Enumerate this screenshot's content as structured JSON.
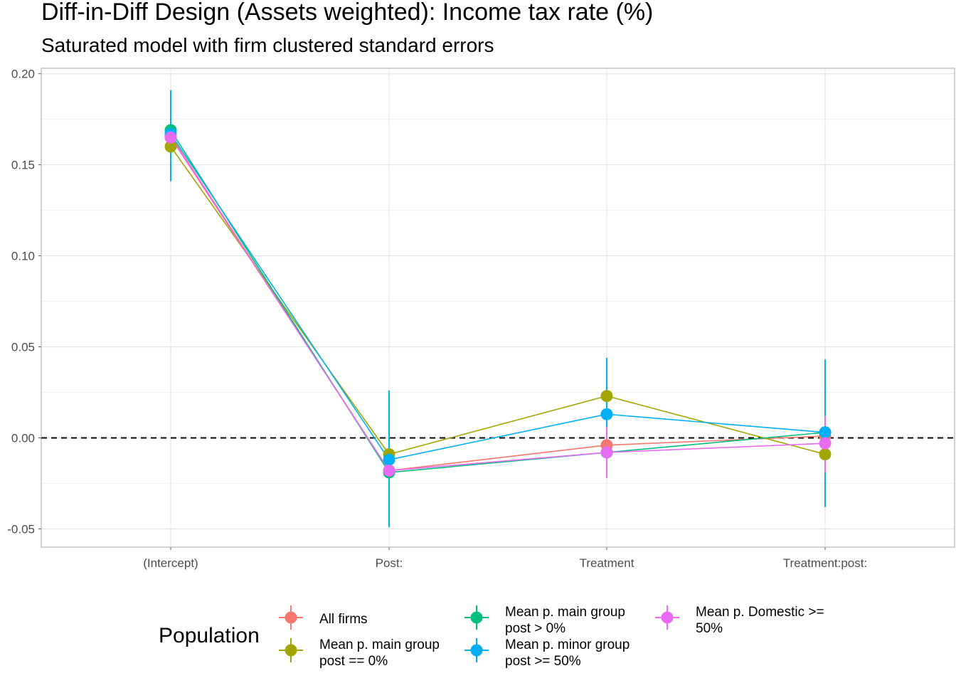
{
  "chart_data": {
    "type": "line",
    "title": "Diff-in-Diff Design (Assets weighted): Income tax rate  (%)",
    "subtitle": "Saturated model with firm clustered standard errors",
    "xlabel": "",
    "ylabel": "",
    "categories": [
      "(Intercept)",
      "Post:",
      "Treatment",
      "Treatment:post:"
    ],
    "ylim": [
      -0.06,
      0.203
    ],
    "y_ticks": [
      -0.05,
      0.0,
      0.05,
      0.1,
      0.15,
      0.2
    ],
    "y_tick_labels": [
      "-0.05",
      "0.00",
      "0.05",
      "0.10",
      "0.15",
      "0.20"
    ],
    "reference_line": 0,
    "grid": true,
    "legend": {
      "title": "Population",
      "placement": "bottom"
    },
    "series": [
      {
        "name": "All firms",
        "color": "#F8766D",
        "values": [
          0.166,
          -0.018,
          -0.004,
          0.001
        ],
        "lower": [
          0.149,
          -0.021,
          -0.008,
          -0.002
        ],
        "upper": [
          0.183,
          -0.015,
          0.0,
          0.004
        ]
      },
      {
        "name": "Mean p. main group post == 0%",
        "color": "#A3A500",
        "values": [
          0.16,
          -0.009,
          0.023,
          -0.009
        ],
        "lower": [
          0.15,
          -0.012,
          0.019,
          -0.012
        ],
        "upper": [
          0.17,
          -0.006,
          0.027,
          -0.006
        ]
      },
      {
        "name": "Mean p. main group post > 0%",
        "color": "#00BF7D",
        "values": [
          0.169,
          -0.019,
          -0.008,
          0.003
        ],
        "lower": [
          0.149,
          -0.022,
          -0.012,
          0.0
        ],
        "upper": [
          0.189,
          -0.016,
          -0.004,
          0.006
        ]
      },
      {
        "name": "Mean p. minor group post >= 50%",
        "color": "#00B0F6",
        "values": [
          0.167,
          -0.012,
          0.013,
          0.003
        ],
        "lower": [
          0.141,
          -0.049,
          -0.002,
          -0.038
        ],
        "upper": [
          0.191,
          0.026,
          0.044,
          0.043
        ]
      },
      {
        "name": "Mean p. Domestic >= 50%",
        "color": "#E76BF3",
        "values": [
          0.165,
          -0.018,
          -0.008,
          -0.003
        ],
        "lower": [
          0.159,
          -0.021,
          -0.022,
          -0.019
        ],
        "upper": [
          0.171,
          -0.015,
          0.006,
          0.012
        ]
      }
    ]
  }
}
